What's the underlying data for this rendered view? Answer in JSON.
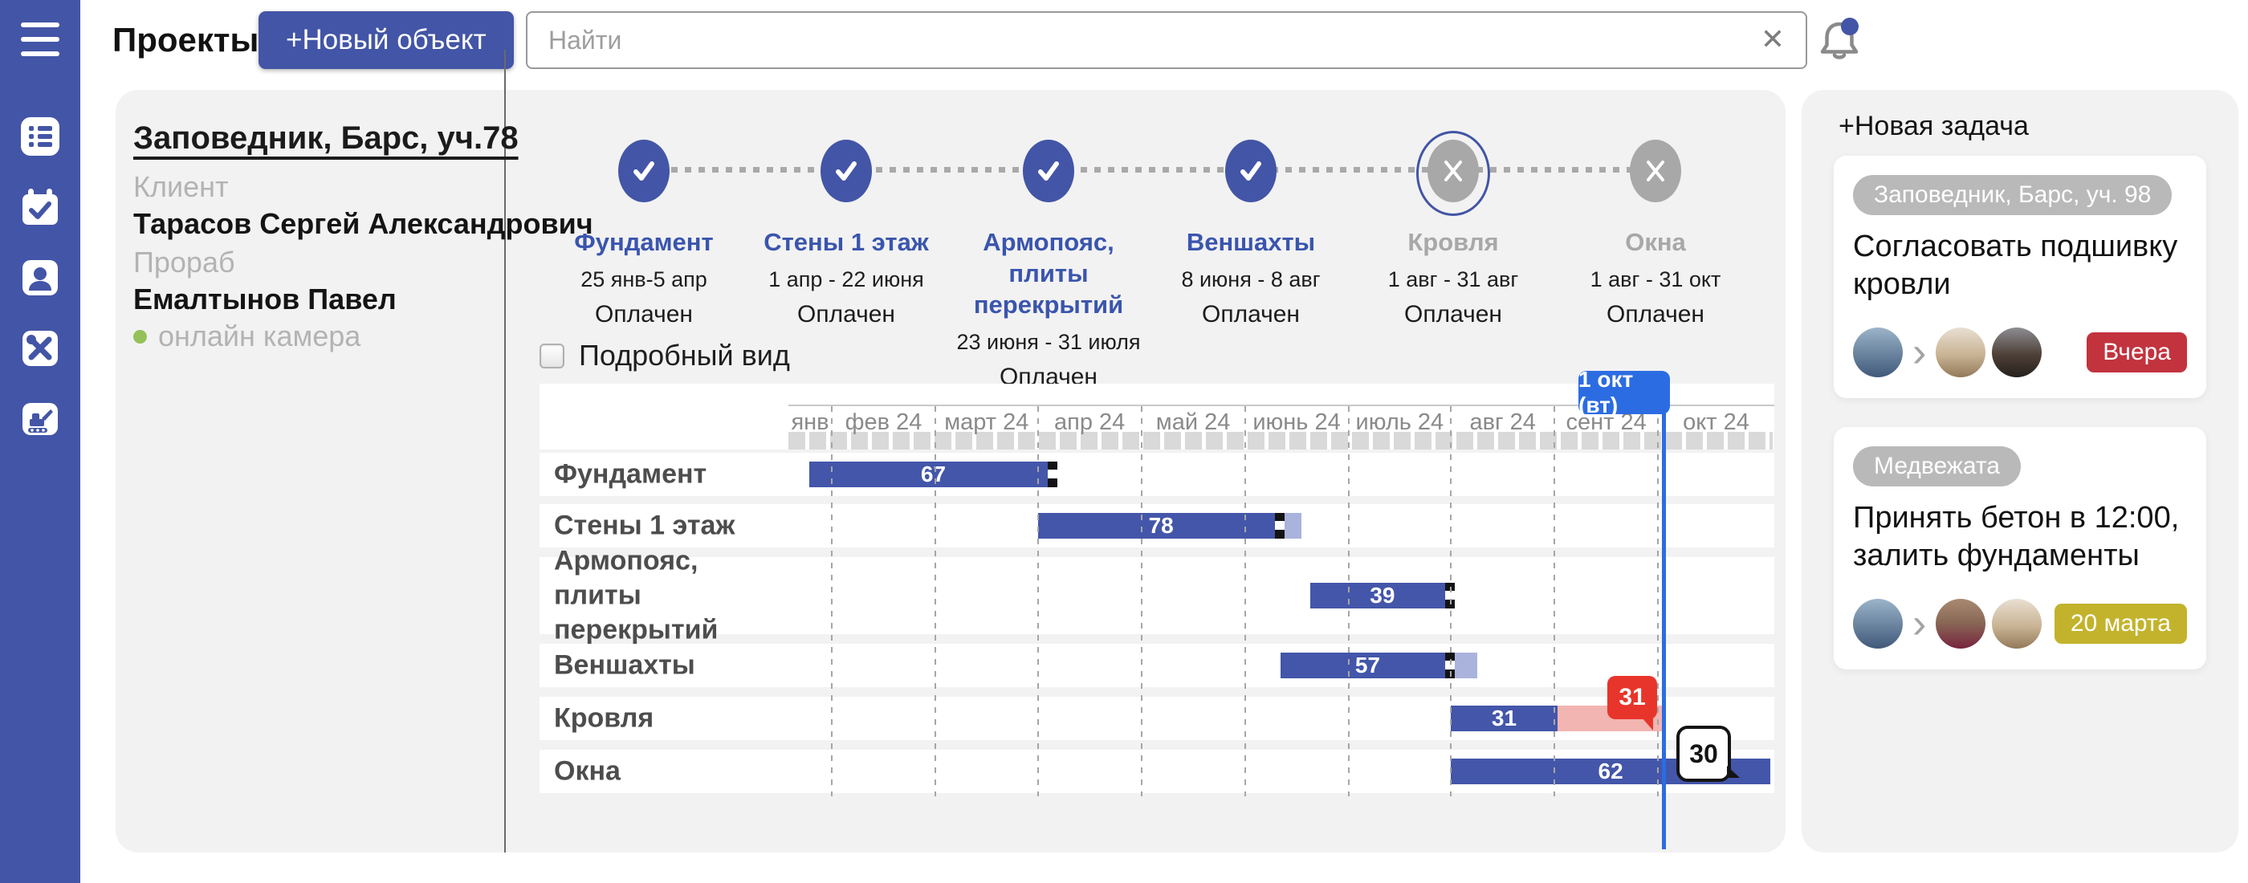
{
  "colors": {
    "primary_blue": "#4355a6",
    "accent_blue": "#2c6ce2",
    "bar_blue": "#4356a9",
    "bar_light_extension": "#a9b3dc",
    "overdue_pink": "#f3b5b1",
    "flag_red": "#e8352b",
    "badge_red": "#c2333e",
    "badge_yellow": "#c3b32c",
    "pill_gray": "#b9b9b9",
    "panel_gray": "#f2f2f2"
  },
  "header": {
    "title": "Проекты",
    "new_object_button": "+Новый объект",
    "search_placeholder": "Найти",
    "clear_icon": "✕"
  },
  "sidebar": {
    "icons": [
      "menu-icon",
      "list-icon",
      "calendar-check-icon",
      "contact-icon",
      "tools-icon",
      "excavator-icon"
    ]
  },
  "project": {
    "name": "Заповедник, Барс, уч.78",
    "client_label": "Клиент",
    "client_name": "Тарасов Сергей Александрович",
    "foreman_label": "Прораб",
    "foreman_name": "Емалтынов Павел",
    "camera_status": "онлайн камера"
  },
  "stages": [
    {
      "name": "Фундамент",
      "dates": "25 янв-5 апр",
      "status": "Оплачен",
      "done": true,
      "selected": false
    },
    {
      "name": "Стены 1 этаж",
      "dates": "1 апр - 22 июня",
      "status": "Оплачен",
      "done": true,
      "selected": false
    },
    {
      "name": "Армопояс, плиты перекрытий",
      "dates": "23 июня - 31 июля",
      "status": "Оплачен",
      "done": true,
      "selected": false
    },
    {
      "name": "Веншахты",
      "dates": "8 июня - 8 авг",
      "status": "Оплачен",
      "done": true,
      "selected": false
    },
    {
      "name": "Кровля",
      "dates": "1 авг - 31 авг",
      "status": "Оплачен",
      "done": false,
      "selected": true
    },
    {
      "name": "Окна",
      "dates": "1 авг - 31 окт",
      "status": "Оплачен",
      "done": false,
      "selected": false
    }
  ],
  "gantt": {
    "detail_view_label": "Подробный вид",
    "today": {
      "label": "1 окт (вт)",
      "pct": 88.8
    },
    "months": [
      {
        "label": "янв",
        "start": 0,
        "end": 4.4
      },
      {
        "label": "фев 24",
        "start": 4.4,
        "end": 14.9
      },
      {
        "label": "март 24",
        "start": 14.9,
        "end": 25.3
      },
      {
        "label": "апр 24",
        "start": 25.3,
        "end": 35.8
      },
      {
        "label": "май 24",
        "start": 35.8,
        "end": 46.3
      },
      {
        "label": "июнь 24",
        "start": 46.3,
        "end": 56.8
      },
      {
        "label": "июль 24",
        "start": 56.8,
        "end": 67.2
      },
      {
        "label": "авг 24",
        "start": 67.2,
        "end": 77.7
      },
      {
        "label": "сент 24",
        "start": 77.7,
        "end": 88.2
      },
      {
        "label": "окт 24",
        "start": 88.2,
        "end": 100
      }
    ],
    "rows": [
      {
        "label": "Фундамент",
        "value": "67",
        "start": 2.1,
        "width": 25.2,
        "cap": true
      },
      {
        "label": "Стены 1 этаж",
        "value": "78",
        "start": 25.3,
        "width": 25.0,
        "cap": true,
        "light": 1.7
      },
      {
        "label": "Армопояс, плиты перекрытий",
        "value": "39",
        "start": 52.9,
        "width": 14.7,
        "cap": true
      },
      {
        "label": "Веншахты",
        "value": "57",
        "start": 49.9,
        "width": 17.7,
        "cap": true,
        "light": 2.3
      },
      {
        "label": "Кровля",
        "value": "31",
        "start": 67.2,
        "width": 10.8,
        "overdue": 10.9,
        "flag": "31"
      },
      {
        "label": "Окна",
        "value": "62",
        "start": 67.2,
        "width": 32.4,
        "bubble": "30"
      }
    ]
  },
  "tasks": {
    "new_task_label": "+Новая задача",
    "cards": [
      {
        "tag": "Заповедник, Барс, уч. 98",
        "title": "Согласовать подшивку кровли",
        "badge": "Вчера",
        "badge_color": "#c2333e",
        "avatars": [
          "man",
          "trench",
          "darkcoat"
        ]
      },
      {
        "tag": "Медвежата",
        "title": "Принять бетон в 12:00, залить фундаменты",
        "badge": "20 марта",
        "badge_color": "#c3b32c",
        "avatars": [
          "man",
          "woman",
          "trench"
        ]
      }
    ]
  }
}
